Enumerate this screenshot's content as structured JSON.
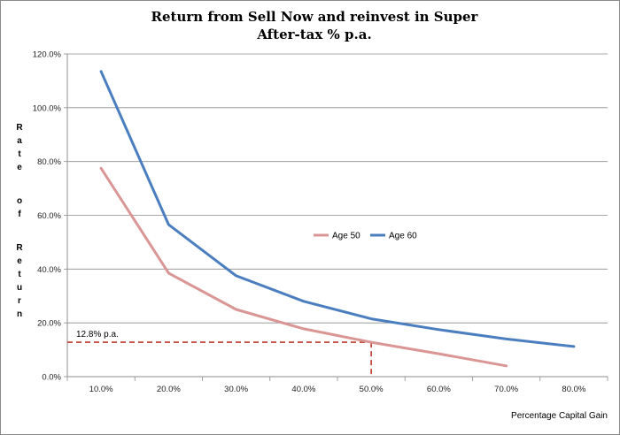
{
  "chart_data": {
    "type": "line",
    "title": "Return from Sell Now  and reinvest in Super",
    "subtitle": "After-tax % p.a.",
    "xlabel": "Percentage Capital Gain",
    "ylabel": "Rate of Return",
    "ylabel_words": [
      "Rate",
      "of",
      "Return"
    ],
    "x_ticks": [
      "10.0%",
      "20.0%",
      "30.0%",
      "40.0%",
      "50.0%",
      "60.0%",
      "70.0%",
      "80.0%"
    ],
    "y_ticks": [
      "0.0%",
      "20.0%",
      "40.0%",
      "60.0%",
      "80.0%",
      "100.0%",
      "120.0%"
    ],
    "ylim": [
      0,
      120
    ],
    "x": [
      10,
      20,
      30,
      40,
      50,
      60,
      70,
      80
    ],
    "series": [
      {
        "name": "Age 50",
        "color": "#d99694",
        "values": [
          77.5,
          38.5,
          25.0,
          17.8,
          12.8,
          8.5,
          4.0,
          null
        ]
      },
      {
        "name": "Age 60",
        "color": "#4a7ebf",
        "values": [
          113.5,
          56.5,
          37.5,
          28.0,
          21.5,
          17.5,
          14.0,
          11.2
        ]
      }
    ],
    "legend": "center-right",
    "grid": {
      "horizontal": true,
      "vertical": false
    },
    "annotation": {
      "text": "12.8% p.a.",
      "x": 50,
      "y": 12.8,
      "color": "#c0392b"
    }
  }
}
